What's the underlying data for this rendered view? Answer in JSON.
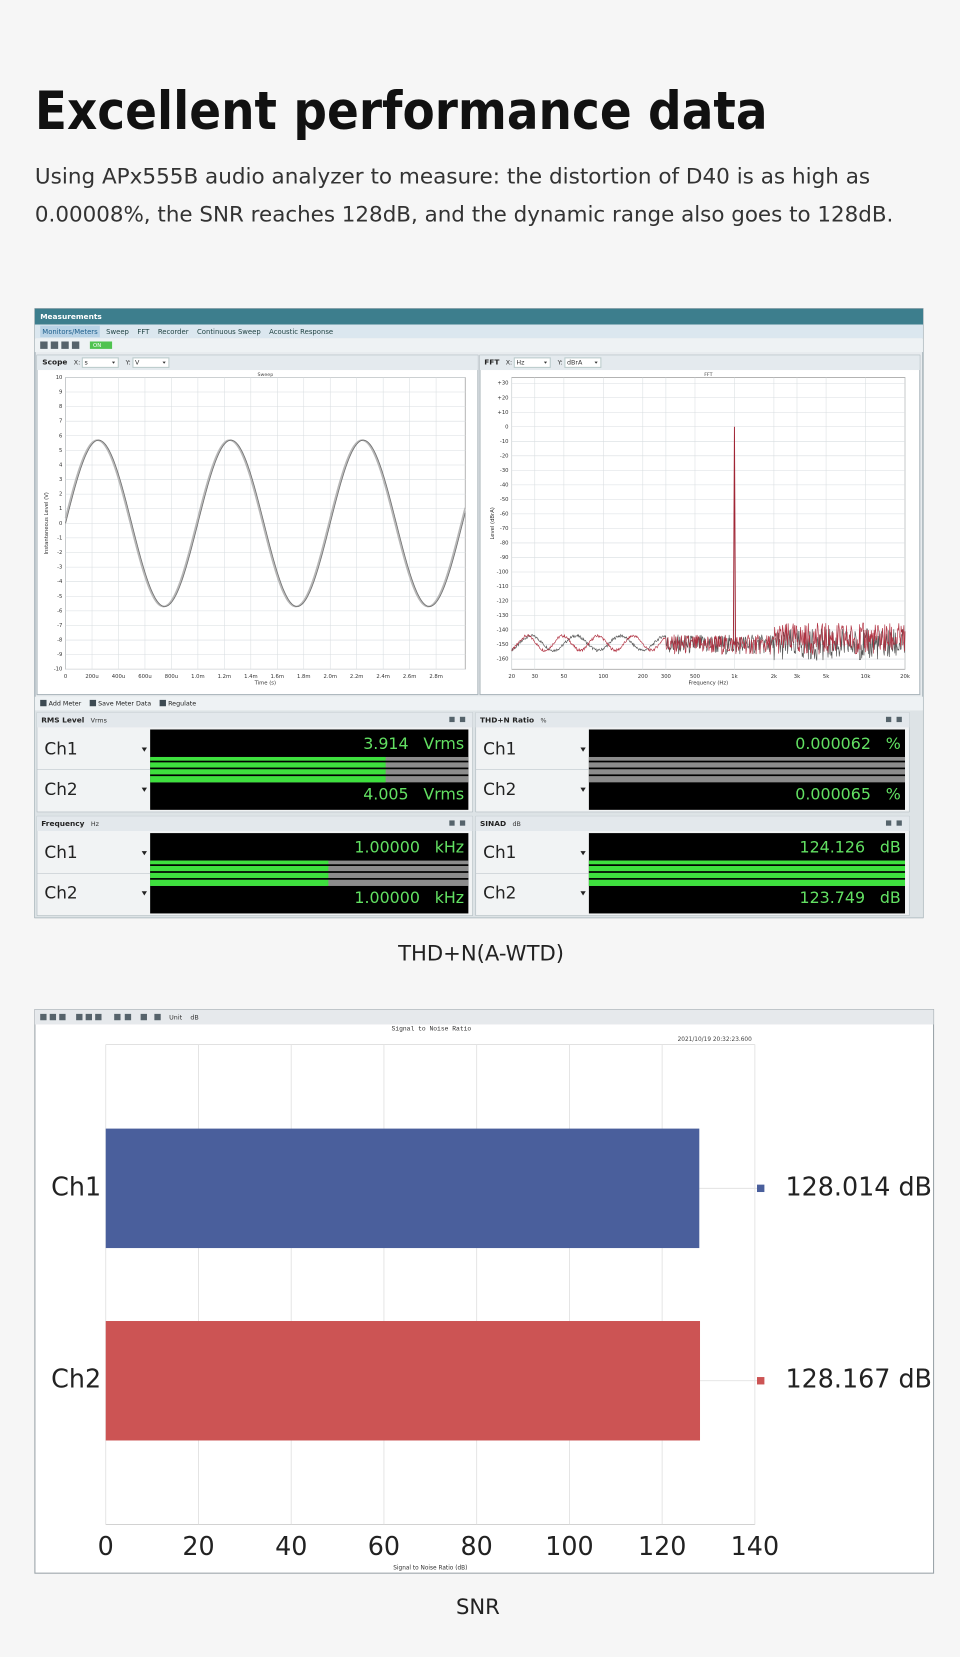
{
  "header": {
    "title": "Excellent performance data",
    "description_lines": [
      "Using APx555B audio analyzer to measure: the distortion of D40 is as high as",
      "0.00008%, the SNR reaches 128dB, and the dynamic range also goes to 128dB."
    ]
  },
  "analyzer": {
    "window_title": "Measurements",
    "tabs": [
      "Monitors/Meters",
      "Sweep",
      "FFT",
      "Recorder",
      "Continuous Sweep",
      "Acoustic Response"
    ],
    "toggle": "ON",
    "axis_selectors": [
      "X:",
      "Y:"
    ],
    "scope": {
      "title": "Scope",
      "x_unit": "s",
      "y_unit": "V",
      "plot_title": "Sweep",
      "x_label": "Time (s)",
      "y_label": "Instantaneous Level (V)",
      "xlim": [
        0,
        0.00302
      ],
      "ylim": [
        -10,
        10
      ],
      "xticks": [
        0,
        {
          "value": 0.0002,
          "label": "200u"
        },
        {
          "value": 0.0004,
          "label": "400u"
        },
        {
          "value": 0.0006,
          "label": "600u"
        },
        {
          "value": 0.0008,
          "label": "800u"
        },
        {
          "value": 0.001,
          "label": "1.0m"
        },
        {
          "value": 0.0012,
          "label": "1.2m"
        },
        {
          "value": 0.0014,
          "label": "1.4m"
        },
        {
          "value": 0.0016,
          "label": "1.6m"
        },
        {
          "value": 0.0018,
          "label": "1.8m"
        },
        {
          "value": 0.002,
          "label": "2.0m"
        },
        {
          "value": 0.0022,
          "label": "2.2m"
        },
        {
          "value": 0.0024,
          "label": "2.4m"
        },
        {
          "value": 0.0026,
          "label": "2.6m"
        },
        {
          "value": 0.0028,
          "label": "2.8m"
        }
      ],
      "yticks": [
        10,
        9,
        8,
        7,
        6,
        5,
        4,
        3,
        2,
        1,
        0,
        -1,
        -2,
        -3,
        -4,
        -5,
        -6,
        -7,
        -8,
        -9,
        -10
      ],
      "signal": {
        "amplitude": 5.7,
        "frequency": 1000
      }
    },
    "fft": {
      "title": "FFT",
      "x_unit": "Hz",
      "y_unit": "dBrA",
      "plot_title": "FFT",
      "x_label": "Frequency (Hz)",
      "y_label": "Level (dBrA)",
      "log_x": true,
      "xlim": [
        20,
        20000
      ],
      "ylim": [
        -167,
        34
      ],
      "xticks": [
        20,
        30,
        50,
        100,
        200,
        300,
        500,
        {
          "value": 1000,
          "label": "1k"
        },
        {
          "value": 2000,
          "label": "2k"
        },
        {
          "value": 3000,
          "label": "3k"
        },
        {
          "value": 5000,
          "label": "5k"
        },
        {
          "value": 10000,
          "label": "10k"
        },
        {
          "value": 20000,
          "label": "20k"
        }
      ],
      "yticks": [
        {
          "value": 30,
          "label": "+30"
        },
        {
          "value": 20,
          "label": "+20"
        },
        {
          "value": 10,
          "label": "+10"
        },
        0,
        -10,
        -20,
        -30,
        -40,
        -50,
        -60,
        -70,
        -80,
        -90,
        -100,
        -110,
        -120,
        -130,
        -140,
        -150,
        -160
      ],
      "peak": {
        "frequency": 1000,
        "level": 0
      },
      "noise_floor": -150
    },
    "meter_toolbar": [
      "Add Meter",
      "Save Meter Data",
      "Regulate"
    ],
    "meters": [
      {
        "title": "RMS Level",
        "unit": "Vrms",
        "channels": [
          {
            "name": "Ch1",
            "value": "3.914",
            "unit": "Vrms"
          },
          {
            "name": "Ch2",
            "value": "4.005",
            "unit": "Vrms"
          }
        ]
      },
      {
        "title": "THD+N Ratio",
        "unit": "%",
        "channels": [
          {
            "name": "Ch1",
            "value": "0.000062",
            "unit": "%"
          },
          {
            "name": "Ch2",
            "value": "0.000065",
            "unit": "%"
          }
        ]
      },
      {
        "title": "Frequency",
        "unit": "Hz",
        "channels": [
          {
            "name": "Ch1",
            "value": "1.00000",
            "unit": "kHz"
          },
          {
            "name": "Ch2",
            "value": "1.00000",
            "unit": "kHz"
          }
        ]
      },
      {
        "title": "SINAD",
        "unit": "dB",
        "channels": [
          {
            "name": "Ch1",
            "value": "124.126",
            "unit": "dB"
          },
          {
            "name": "Ch2",
            "value": "123.749",
            "unit": "dB"
          }
        ]
      }
    ]
  },
  "captions": [
    "THD+N(A-WTD)",
    "SNR"
  ],
  "snr_toolbar": {
    "unit_label": "Unit",
    "unit": "dB"
  },
  "chart_data": {
    "type": "bar",
    "orientation": "horizontal",
    "title": "Signal to Noise Ratio",
    "timestamp": "2021/10/19 20:32:23.600",
    "x_label": "Signal to Noise Ratio (dB)",
    "categories": [
      "Ch1",
      "Ch2"
    ],
    "values": [
      128.014,
      128.167
    ],
    "value_labels": [
      "128.014 dB",
      "128.167 dB"
    ],
    "colors": [
      "#4a5f9c",
      "#cc5454"
    ],
    "xlim": [
      0,
      140
    ],
    "xticks": [
      0,
      20,
      40,
      60,
      80,
      100,
      120,
      140
    ],
    "grid": true
  }
}
